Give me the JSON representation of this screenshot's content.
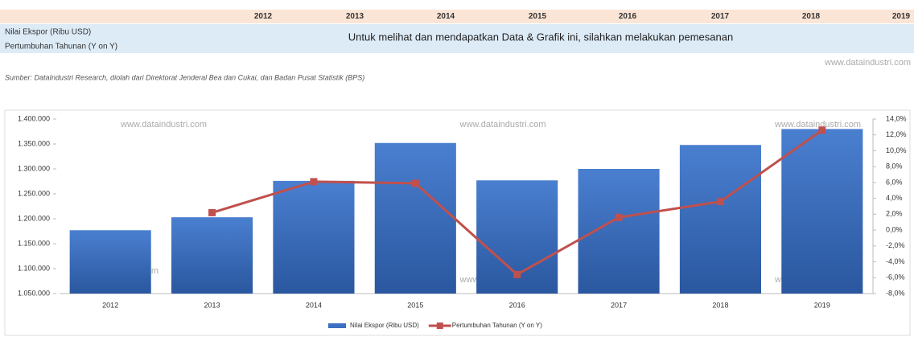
{
  "table": {
    "years": [
      "2012",
      "2013",
      "2014",
      "2015",
      "2016",
      "2017",
      "2018",
      "2019"
    ],
    "row_labels": [
      "Nilai Ekspor (Ribu USD)",
      "Pertumbuhan Tahunan (Y on Y)"
    ],
    "message": "Untuk melihat dan mendapatkan Data & Grafik ini, silahkan melakukan pemesanan"
  },
  "watermark": "www.dataindustri.com",
  "source": "Sumber: DataIndustri Research, diolah dari Direktorat Jenderal Bea dan Cukai, dan Badan Pusat Statistik (BPS)",
  "chart_data": {
    "type": "bar",
    "categories": [
      "2012",
      "2013",
      "2014",
      "2015",
      "2016",
      "2017",
      "2018",
      "2019"
    ],
    "series": [
      {
        "name": "Nilai Ekspor (Ribu USD)",
        "type": "bar",
        "color": "#3d6fc2",
        "values": [
          1177000,
          1203000,
          1276000,
          1352000,
          1277000,
          1300000,
          1348000,
          1380000
        ]
      },
      {
        "name": "Pertumbuhan Tahunan (Y on Y)",
        "type": "line",
        "axis": "y2",
        "color": "#c0504d",
        "values": [
          null,
          2.2,
          6.1,
          5.9,
          -5.6,
          1.6,
          3.6,
          12.6
        ]
      }
    ],
    "ylim": [
      1050000,
      1400000
    ],
    "yticks": [
      {
        "value": 1050000,
        "label": "1.050.000"
      },
      {
        "value": 1100000,
        "label": "1.100.000"
      },
      {
        "value": 1150000,
        "label": "1.150.000"
      },
      {
        "value": 1200000,
        "label": "1.200.000"
      },
      {
        "value": 1250000,
        "label": "1.250.000"
      },
      {
        "value": 1300000,
        "label": "1.300.000"
      },
      {
        "value": 1350000,
        "label": "1.350.000"
      },
      {
        "value": 1400000,
        "label": "1.400.000"
      }
    ],
    "y2lim": [
      -8,
      14
    ],
    "y2ticks": [
      {
        "value": -8,
        "label": "-8,0%"
      },
      {
        "value": -6,
        "label": "-6,0%"
      },
      {
        "value": -4,
        "label": "-4,0%"
      },
      {
        "value": -2,
        "label": "-2,0%"
      },
      {
        "value": 0,
        "label": "0,0%"
      },
      {
        "value": 2,
        "label": "2,0%"
      },
      {
        "value": 4,
        "label": "4,0%"
      },
      {
        "value": 6,
        "label": "6,0%"
      },
      {
        "value": 8,
        "label": "8,0%"
      },
      {
        "value": 10,
        "label": "10,0%"
      },
      {
        "value": 12,
        "label": "12,0%"
      },
      {
        "value": 14,
        "label": "14,0%"
      }
    ],
    "legend": "bottom"
  }
}
